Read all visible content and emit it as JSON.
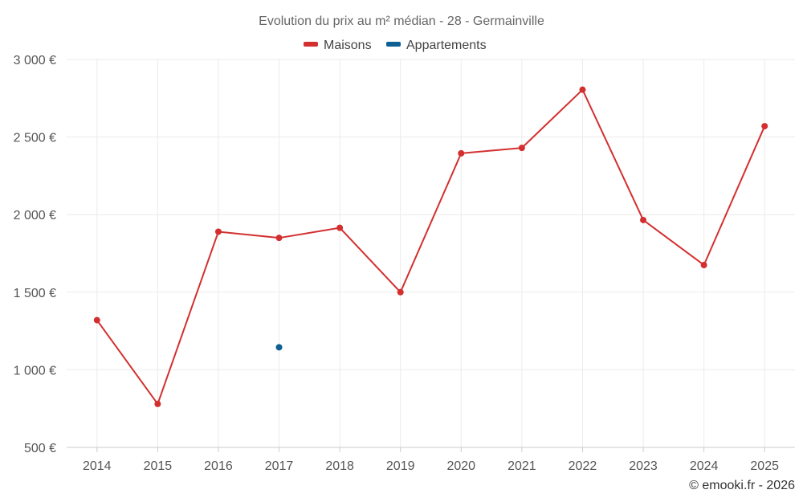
{
  "chart_data": {
    "type": "line",
    "title": "Evolution du prix au m² médian - 28 - Germainville",
    "categories": [
      "2014",
      "2015",
      "2016",
      "2017",
      "2018",
      "2019",
      "2020",
      "2021",
      "2022",
      "2023",
      "2024",
      "2025"
    ],
    "y_ticks": [
      "500 €",
      "1 000 €",
      "1 500 €",
      "2 000 €",
      "2 500 €",
      "3 000 €"
    ],
    "ylim": [
      500,
      3000
    ],
    "grid": true,
    "legend_position": "top-center",
    "series": [
      {
        "name": "Maisons",
        "color": "#d32f2f",
        "values": [
          1320,
          780,
          1890,
          1850,
          1915,
          1500,
          2395,
          2430,
          2805,
          1965,
          1675,
          2570
        ]
      },
      {
        "name": "Appartements",
        "color": "#0d5f94",
        "values": [
          null,
          null,
          null,
          1145,
          null,
          null,
          null,
          null,
          null,
          null,
          null,
          null
        ]
      }
    ],
    "credit": "© emooki.fr - 2026"
  }
}
